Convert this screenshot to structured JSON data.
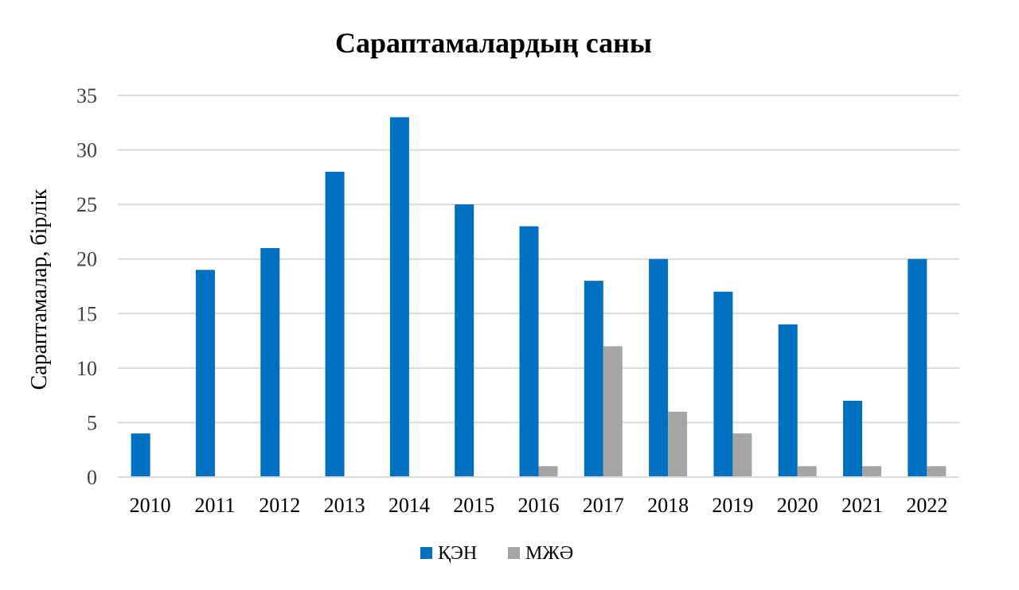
{
  "chart_data": {
    "type": "bar",
    "title": "Сараптамалардың саны",
    "xlabel": "",
    "ylabel": "Сараптамалар, бірлік",
    "ylim": [
      0,
      35
    ],
    "yticks": [
      0,
      5,
      10,
      15,
      20,
      25,
      30,
      35
    ],
    "categories": [
      "2010",
      "2011",
      "2012",
      "2013",
      "2014",
      "2015",
      "2016",
      "2017",
      "2018",
      "2019",
      "2020",
      "2021",
      "2022"
    ],
    "series": [
      {
        "name": "ҚЭН",
        "color": "#0070c0",
        "values": [
          4,
          19,
          21,
          28,
          33,
          25,
          23,
          18,
          20,
          17,
          14,
          7,
          20
        ]
      },
      {
        "name": "МЖӘ",
        "color": "#a5a5a5",
        "values": [
          0,
          0,
          0,
          0,
          0,
          0,
          1,
          12,
          6,
          4,
          1,
          1,
          1
        ]
      }
    ],
    "grid": true,
    "legend_position": "bottom"
  }
}
